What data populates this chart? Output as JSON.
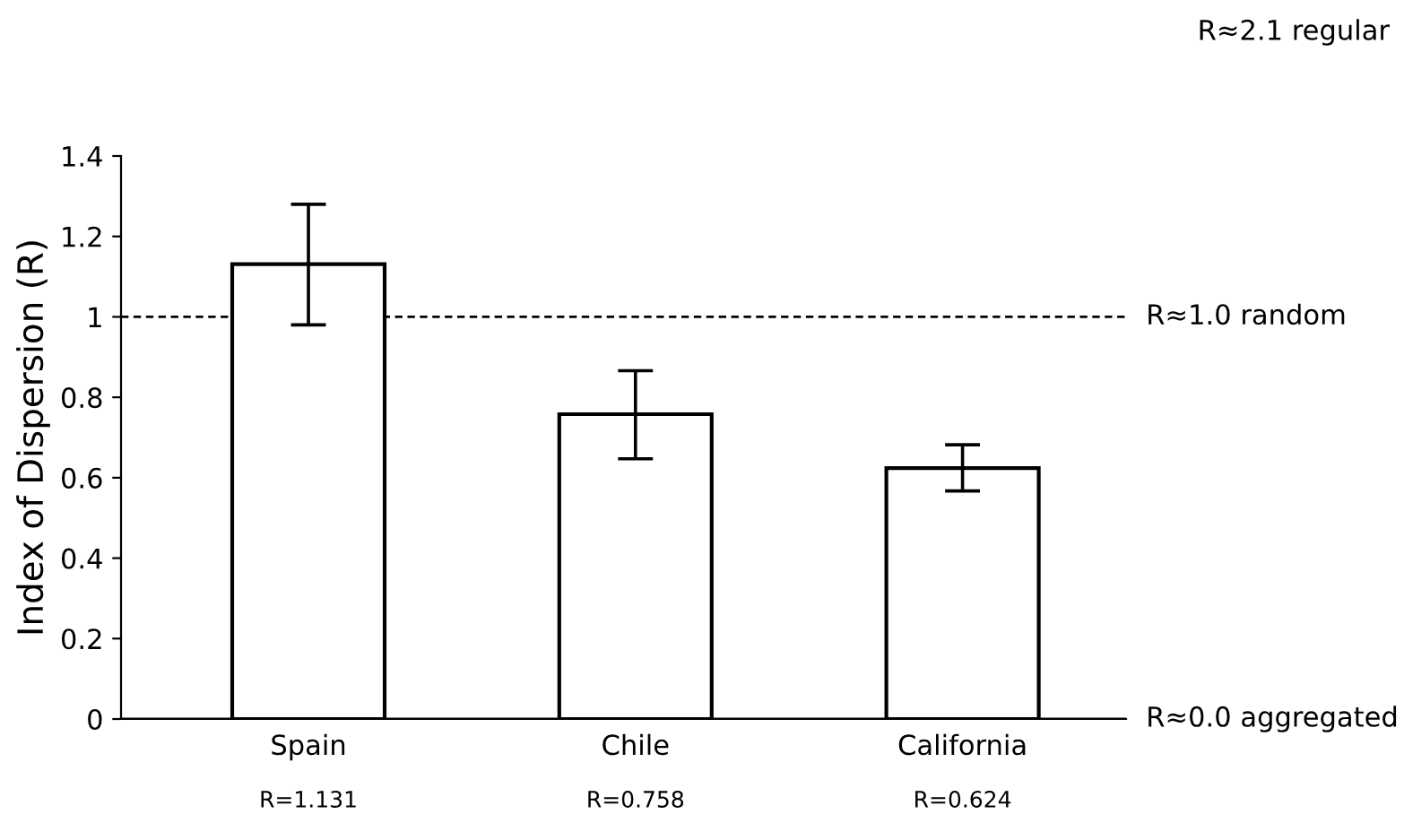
{
  "chart_data": {
    "type": "bar",
    "ylabel": "Index of Dispersion (R)",
    "categories": [
      "Spain",
      "Chile",
      "California"
    ],
    "values": [
      1.131,
      0.758,
      0.624
    ],
    "errors": [
      [
        0.98,
        1.28
      ],
      [
        0.647,
        0.866
      ],
      [
        0.567,
        0.682
      ]
    ],
    "value_labels": [
      "R=1.131",
      "R=0.758",
      "R=0.624"
    ],
    "color": "#ffffff",
    "ylim": [
      0,
      1.4
    ],
    "yticks": [
      0,
      0.2,
      0.4,
      0.6,
      0.8,
      1,
      1.2,
      1.4
    ],
    "ref_lines": [
      {
        "axis": "y",
        "value": 1,
        "label": "R≈1.0 random",
        "line_style": "dashed",
        "color": "#000000"
      },
      {
        "axis": "y",
        "value": 0,
        "label": "R≈0.0 aggregated",
        "line_style": "solid",
        "color": "#000000"
      }
    ],
    "annotations": [
      "R≈2.1 regular"
    ],
    "grid": false,
    "legend": false
  }
}
